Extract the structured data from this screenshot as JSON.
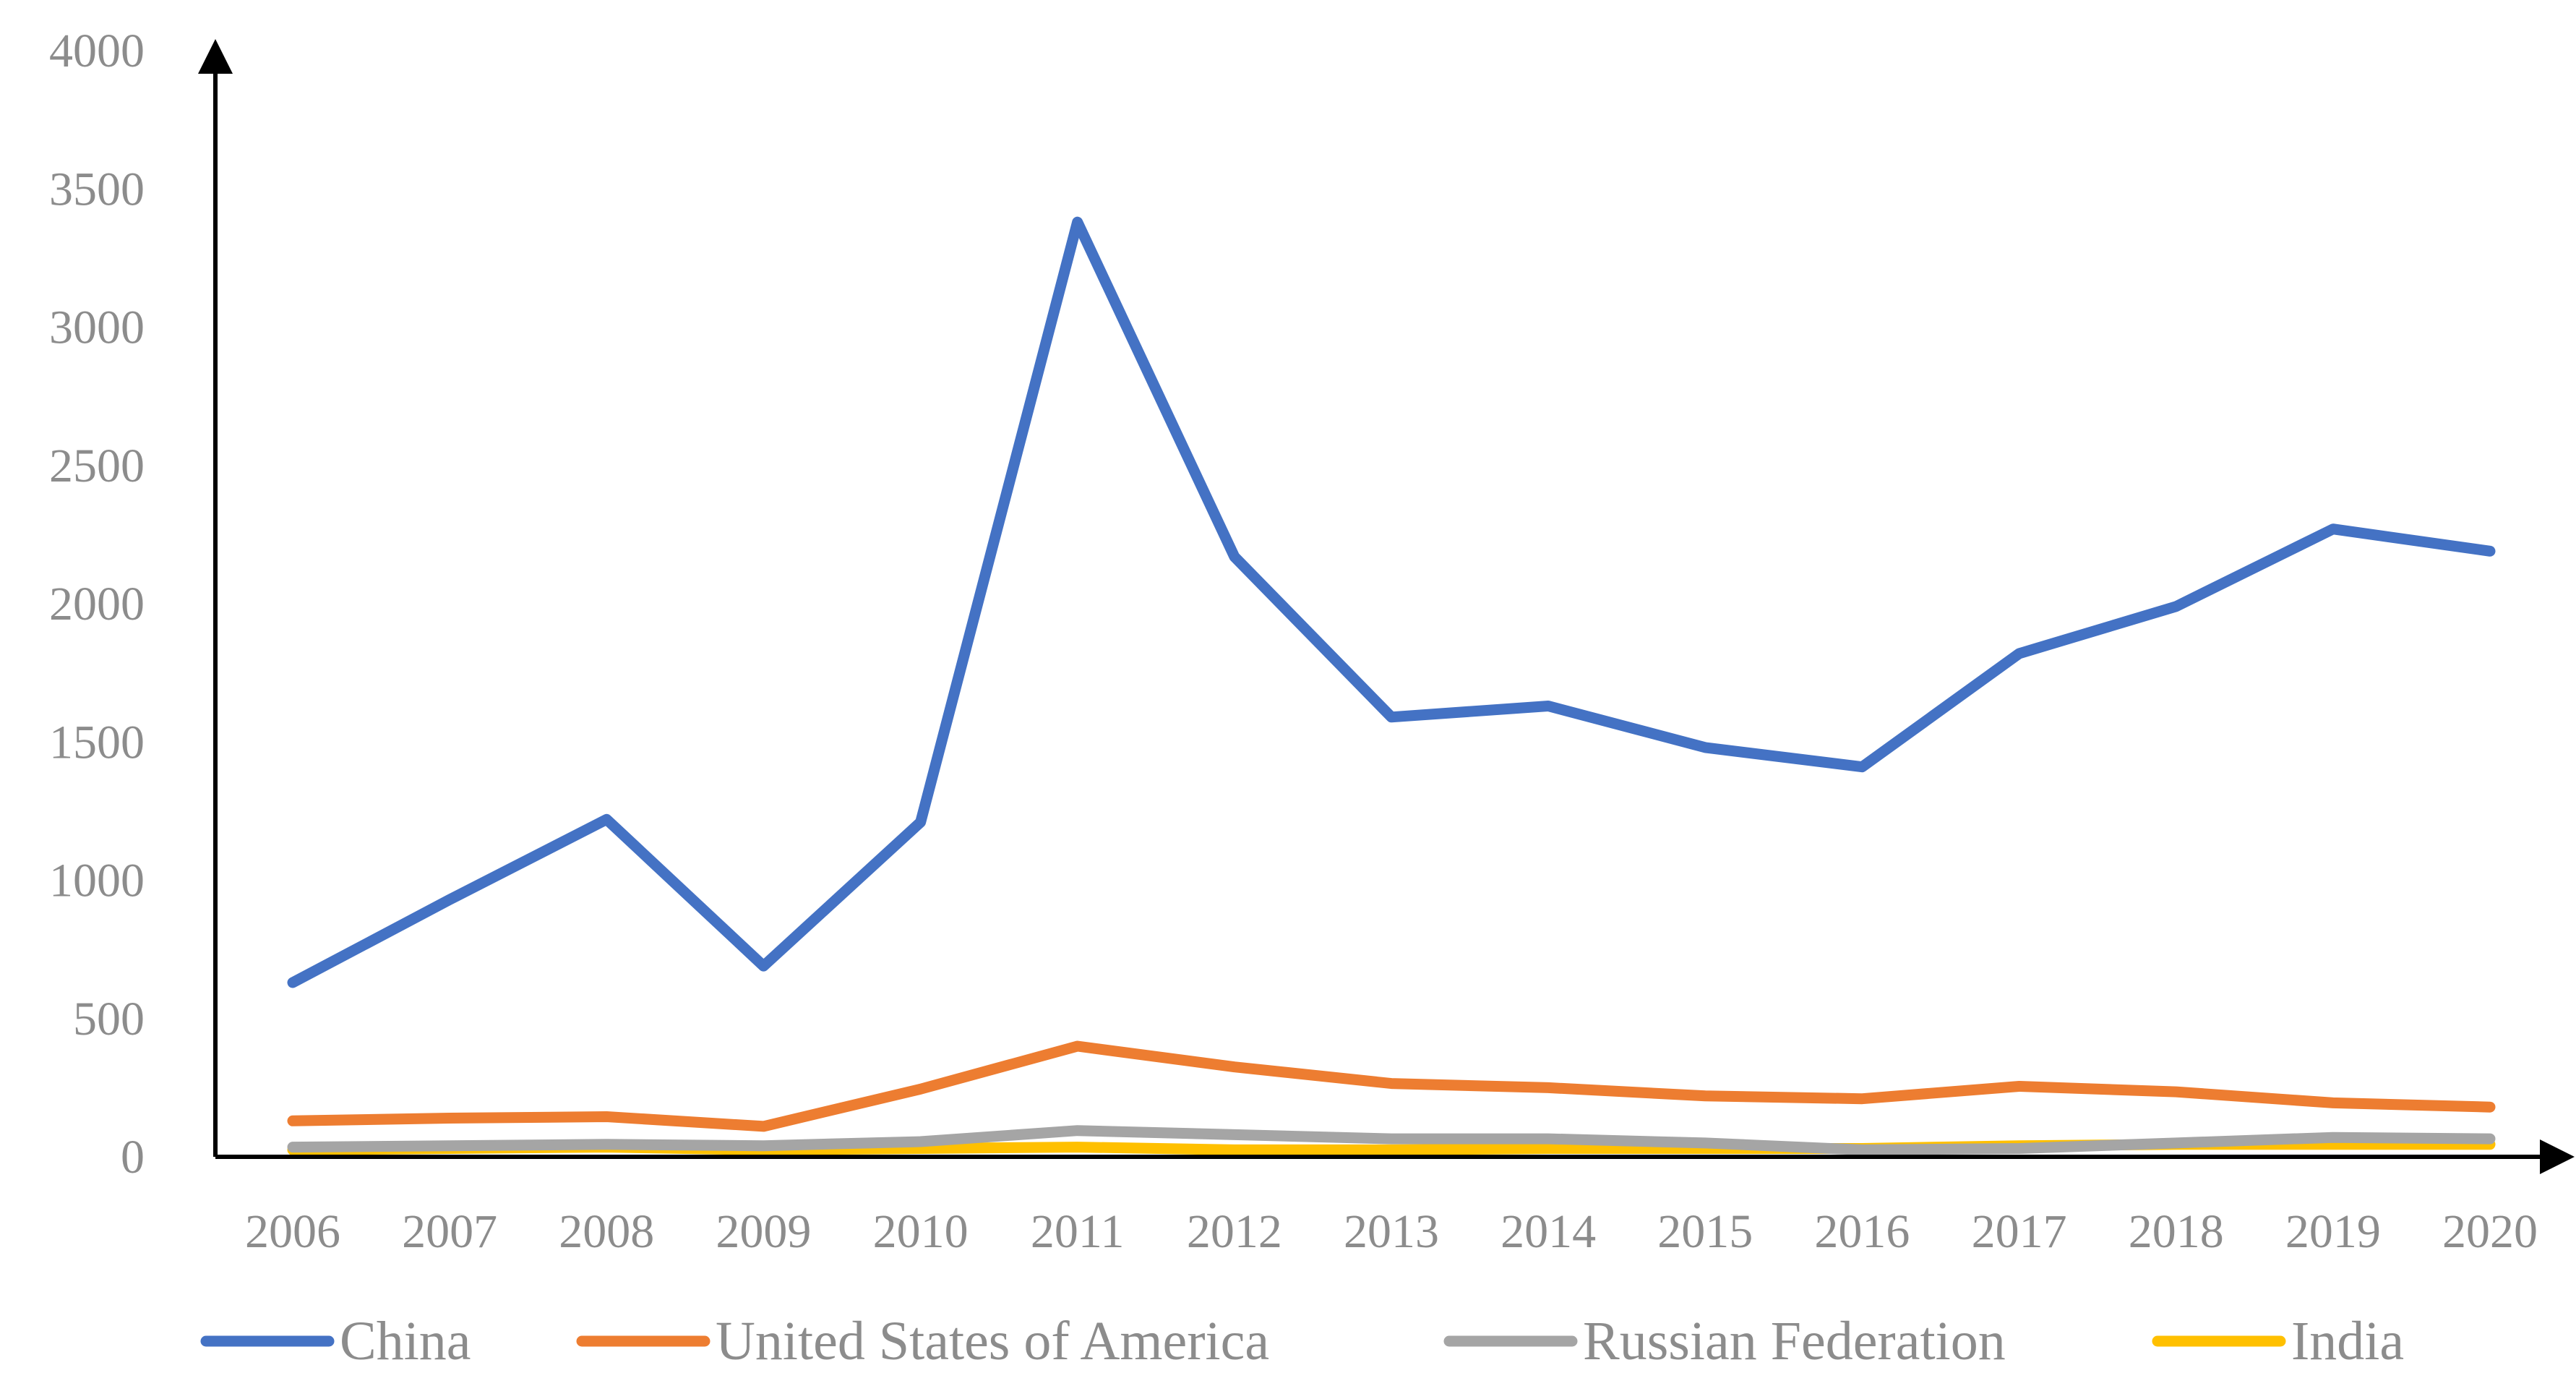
{
  "chart_data": {
    "type": "line",
    "x": [
      "2006",
      "2007",
      "2008",
      "2009",
      "2010",
      "2011",
      "2012",
      "2013",
      "2014",
      "2015",
      "2016",
      "2017",
      "2018",
      "2019",
      "2020"
    ],
    "yticks": [
      "0",
      "500",
      "1000",
      "1500",
      "2000",
      "2500",
      "3000",
      "3500",
      "4000"
    ],
    "ylim": [
      0,
      4000
    ],
    "grid": false,
    "legend_position": "bottom",
    "series": [
      {
        "name": "China",
        "color": "#4472c4",
        "values": [
          630,
          930,
          1220,
          690,
          1210,
          3380,
          2170,
          1590,
          1630,
          1480,
          1410,
          1820,
          1990,
          2270,
          2190
        ]
      },
      {
        "name": "United States of America",
        "color": "#ed7d31",
        "values": [
          130,
          140,
          145,
          110,
          245,
          400,
          325,
          265,
          250,
          220,
          210,
          255,
          235,
          195,
          180
        ]
      },
      {
        "name": "Russian Federation",
        "color": "#a5a5a5",
        "values": [
          35,
          40,
          45,
          40,
          55,
          95,
          80,
          65,
          65,
          50,
          25,
          30,
          50,
          70,
          65
        ]
      },
      {
        "name": "India",
        "color": "#ffc000",
        "values": [
          25,
          30,
          35,
          25,
          30,
          35,
          25,
          25,
          30,
          30,
          30,
          40,
          45,
          45,
          45
        ]
      }
    ]
  }
}
